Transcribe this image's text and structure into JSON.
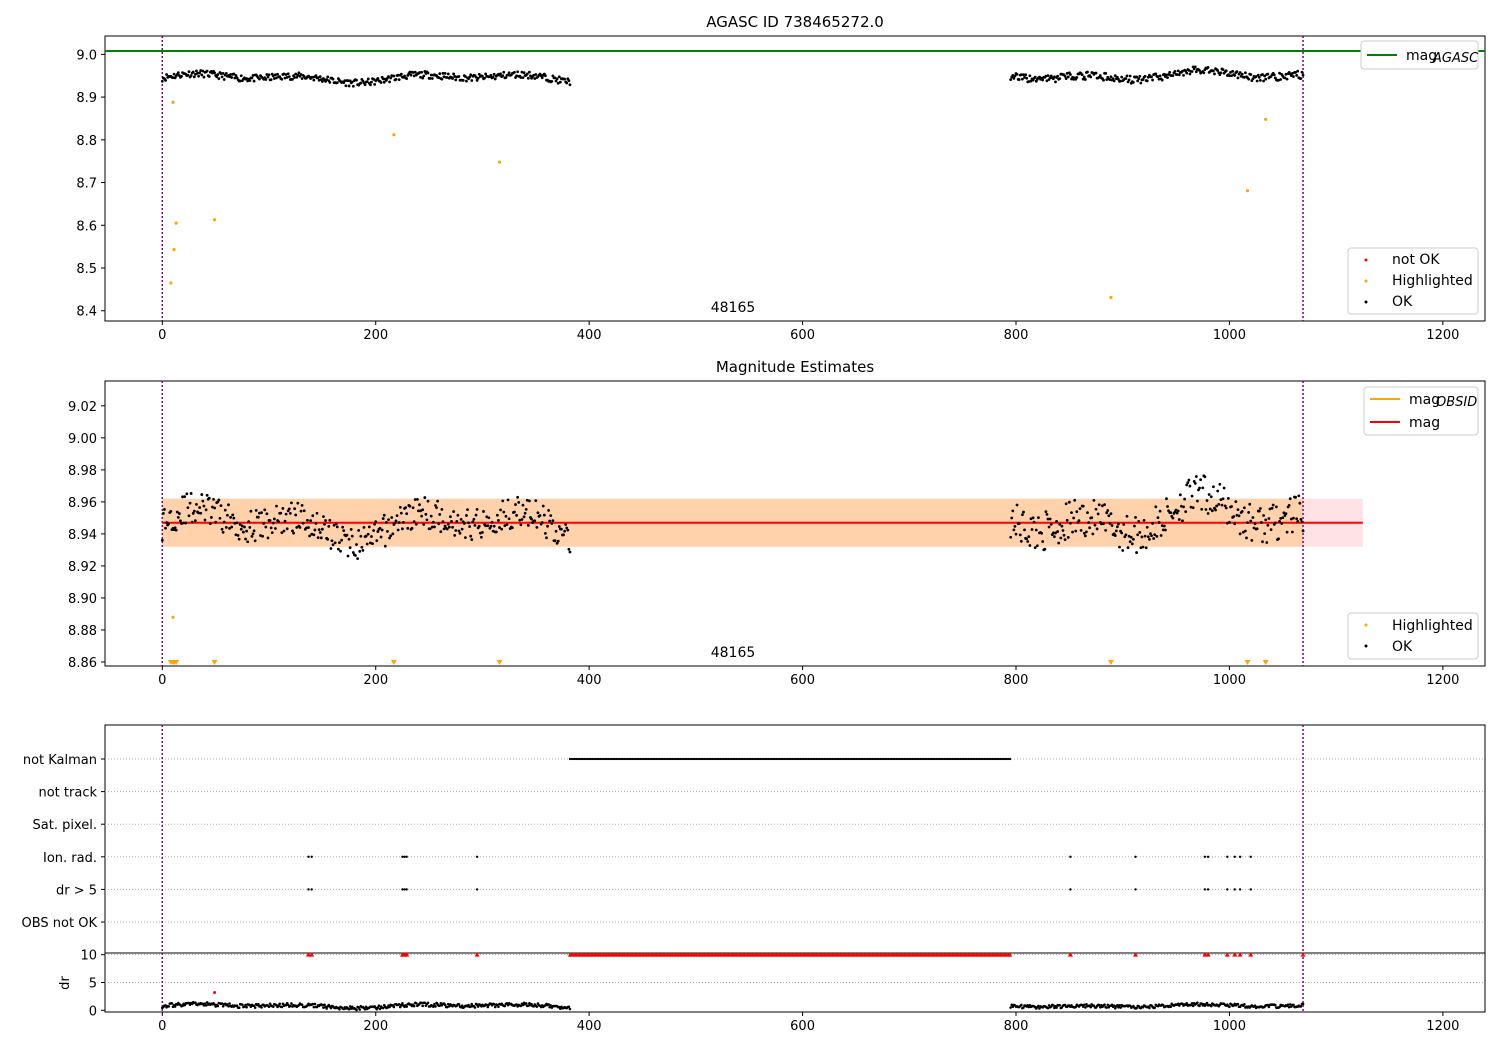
{
  "chart_data": [
    {
      "type": "scatter",
      "title": "AGASC ID 738465272.0",
      "xlim": [
        -53.7,
        1239.5
      ],
      "ylim": [
        8.376,
        9.043
      ],
      "xticks": [
        "0",
        "200",
        "400",
        "600",
        "800",
        "1000",
        "1200"
      ],
      "yticks": [
        "8.4",
        "8.5",
        "8.6",
        "8.7",
        "8.8",
        "8.9",
        "9.0"
      ],
      "agasc_mag": 9.008,
      "obs_start": 0,
      "obs_end": 1069,
      "obsid_label": "48165",
      "legend_top": {
        "position": "upper right",
        "entries": [
          "mag"
        ],
        "subscript": "AGASC",
        "colors": [
          "#008000"
        ]
      },
      "legend_bottom": {
        "position": "lower right",
        "entries": [
          "not OK",
          "Highlighted",
          "OK"
        ],
        "colors": [
          "#ff0000",
          "#ffa500",
          "#000000"
        ]
      },
      "ok_segments": [
        {
          "x0": 0,
          "x1": 382,
          "base": 8.945,
          "amp": 0.012,
          "noise": 0.008
        },
        {
          "x0": 795,
          "x1": 1069,
          "base": 8.95,
          "amp": 0.014,
          "noise": 0.009
        }
      ],
      "highlighted": [
        {
          "x": 8,
          "y": 8.465
        },
        {
          "x": 10,
          "y": 8.888
        },
        {
          "x": 11,
          "y": 8.543
        },
        {
          "x": 13,
          "y": 8.605
        },
        {
          "x": 49,
          "y": 8.613
        },
        {
          "x": 217,
          "y": 8.812
        },
        {
          "x": 316,
          "y": 8.748
        },
        {
          "x": 889,
          "y": 8.431
        },
        {
          "x": 1017,
          "y": 8.681
        },
        {
          "x": 1034,
          "y": 8.848
        }
      ]
    },
    {
      "type": "scatter",
      "title": "Magnitude Estimates",
      "xlim": [
        -53.7,
        1239.5
      ],
      "ylim": [
        8.8575,
        9.0355
      ],
      "xticks": [
        "0",
        "200",
        "400",
        "600",
        "800",
        "1000",
        "1200"
      ],
      "yticks": [
        "8.86",
        "8.88",
        "8.90",
        "8.92",
        "8.94",
        "8.96",
        "8.98",
        "9.00",
        "9.02"
      ],
      "mag": 8.947,
      "band": [
        8.932,
        8.962
      ],
      "band_x": [
        0,
        1125
      ],
      "obsid_mag_band": [
        8.932,
        8.962
      ],
      "obsid_label": "48165",
      "legend_top": {
        "position": "upper right",
        "entries": [
          "mag",
          "mag"
        ],
        "subscript": "OBSID",
        "colors": [
          "#ffa500",
          "#ff0000"
        ]
      },
      "legend_bottom": {
        "position": "lower right",
        "entries": [
          "Highlighted",
          "OK"
        ],
        "colors": [
          "#ffa500",
          "#000000"
        ]
      },
      "ok_segments": [
        {
          "x0": 0,
          "x1": 382,
          "base": 8.946,
          "amp": 0.012,
          "noise": 0.01
        },
        {
          "x0": 795,
          "x1": 1069,
          "base": 8.95,
          "amp": 0.015,
          "noise": 0.012
        }
      ],
      "highlighted_points": [
        {
          "x": 10,
          "y": 8.888
        }
      ],
      "offscale_markers": [
        8,
        10,
        11,
        13,
        49,
        217,
        316,
        889,
        1017,
        1034
      ]
    },
    {
      "type": "scatter",
      "title": "",
      "xlim": [
        -53.7,
        1239.5
      ],
      "categories": [
        "not Kalman",
        "not track",
        "Sat. pixel.",
        "Ion. rad.",
        "dr > 5",
        "OBS not OK"
      ],
      "xticks": [
        "0",
        "200",
        "400",
        "600",
        "800",
        "1000",
        "1200"
      ],
      "flags": {
        "not Kalman": {
          "ranges": [
            [
              382,
              795
            ]
          ]
        },
        "not track": {
          "points": []
        },
        "Sat. pixel.": {
          "points": []
        },
        "Ion. rad.": {
          "points": [
            137,
            140,
            225,
            227,
            229,
            295,
            851,
            912,
            977,
            980,
            998,
            1005,
            1010,
            1020
          ]
        },
        "dr > 5": {
          "points": [
            137,
            140,
            225,
            227,
            229,
            295,
            851,
            912,
            977,
            980,
            998,
            1005,
            1010,
            1020
          ]
        },
        "OBS not OK": {
          "points": []
        }
      }
    },
    {
      "type": "scatter",
      "title": "",
      "ylabel": "dr",
      "xlim": [
        -53.7,
        1239.5
      ],
      "ylim": [
        -0.3,
        10.3
      ],
      "yticks": [
        "0",
        "5",
        "10"
      ],
      "xticks": [
        "0",
        "200",
        "400",
        "600",
        "800",
        "1000",
        "1200"
      ],
      "ok_segments": [
        {
          "x0": 0,
          "x1": 382,
          "base": 0.8,
          "amp": 0.4,
          "noise": 0.35
        },
        {
          "x0": 795,
          "x1": 1069,
          "base": 0.8,
          "amp": 0.3,
          "noise": 0.3
        }
      ],
      "capped_points": {
        "ranges": [
          [
            382,
            795
          ]
        ],
        "points": [
          137,
          140,
          225,
          227,
          229,
          295,
          851,
          912,
          977,
          980,
          998,
          1005,
          1010,
          1020,
          1069
        ],
        "value": 10
      },
      "highlighted": [
        {
          "x": 49,
          "y": 3.2
        }
      ]
    }
  ]
}
